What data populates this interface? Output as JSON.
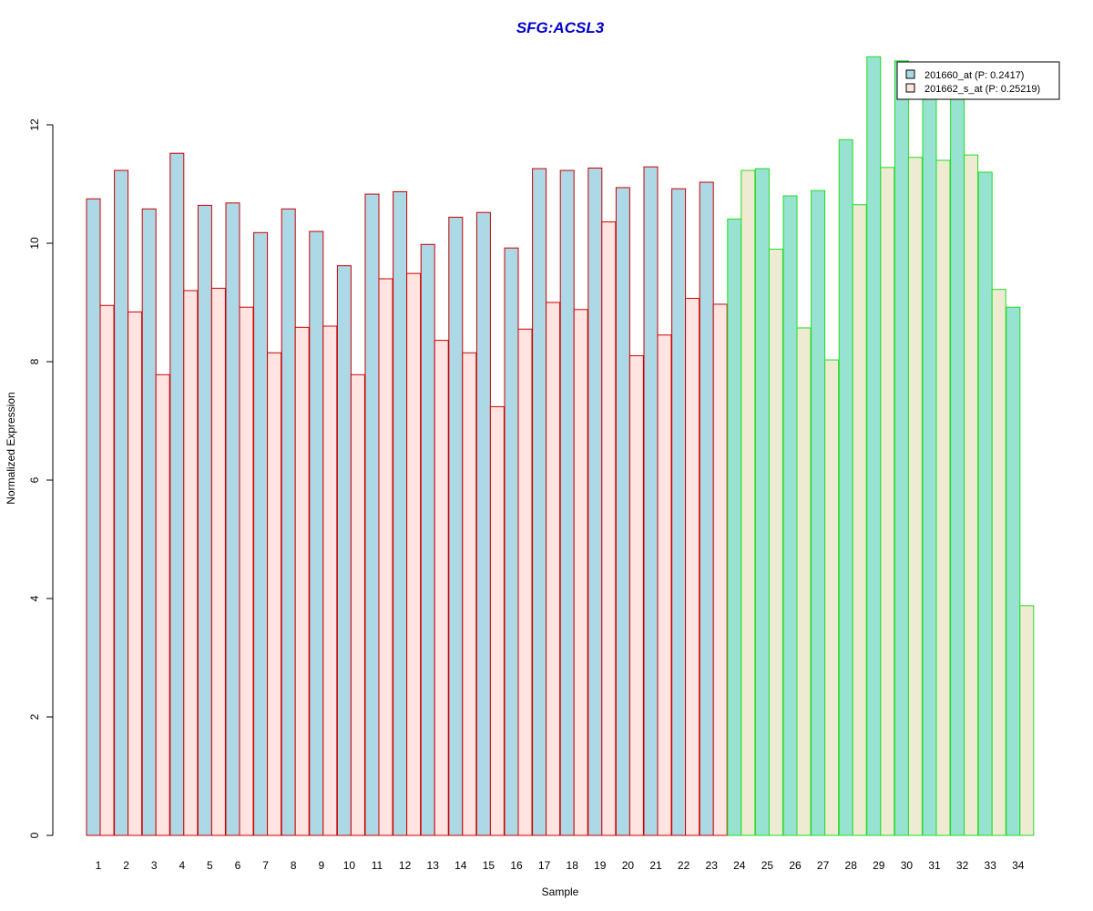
{
  "colors": {
    "title": "#0000CC",
    "group1_fill_a": "#ADD8E6",
    "group1_fill_b": "#FFE4E1",
    "group1_border": "#CC0000",
    "group2_fill_a": "#98E2D2",
    "group2_fill_b": "#EEEBD2",
    "group2_border": "#22DD22",
    "legend_fill_a": "#ADD8E6",
    "legend_fill_b": "#FFE4E1"
  },
  "chart_data": {
    "type": "bar",
    "title": "SFG:ACSL3",
    "xlabel": "Sample",
    "ylabel": "Normalized Expression",
    "ylim": [
      0,
      13.2
    ],
    "yticks": [
      0,
      2,
      4,
      6,
      8,
      10,
      12
    ],
    "grid": false,
    "legend_position": "top-right",
    "categories": [
      "1",
      "2",
      "3",
      "4",
      "5",
      "6",
      "7",
      "8",
      "9",
      "10",
      "11",
      "12",
      "13",
      "14",
      "15",
      "16",
      "17",
      "18",
      "19",
      "20",
      "21",
      "22",
      "23",
      "24",
      "25",
      "26",
      "27",
      "28",
      "29",
      "30",
      "31",
      "32",
      "33",
      "34"
    ],
    "group2_start_index": 23,
    "series": [
      {
        "name": "201660_at (P: 0.2417)",
        "values": [
          10.75,
          11.23,
          10.58,
          11.52,
          10.64,
          10.68,
          10.18,
          10.58,
          10.2,
          9.62,
          10.83,
          10.87,
          9.98,
          10.44,
          10.52,
          9.92,
          11.26,
          11.23,
          11.27,
          10.94,
          11.29,
          10.92,
          11.03,
          10.41,
          11.26,
          10.8,
          10.89,
          11.75,
          13.15,
          13.08,
          12.5,
          12.45,
          11.2,
          8.92
        ]
      },
      {
        "name": "201662_s_at (P: 0.25219)",
        "values": [
          8.95,
          8.84,
          7.78,
          9.2,
          9.24,
          8.92,
          8.15,
          8.58,
          8.6,
          7.78,
          9.4,
          9.49,
          8.36,
          8.15,
          7.24,
          8.55,
          9.0,
          8.88,
          10.36,
          8.1,
          8.45,
          9.07,
          8.97,
          11.23,
          9.9,
          8.57,
          8.03,
          10.65,
          11.28,
          11.45,
          11.4,
          11.49,
          9.22,
          3.88
        ]
      }
    ]
  }
}
